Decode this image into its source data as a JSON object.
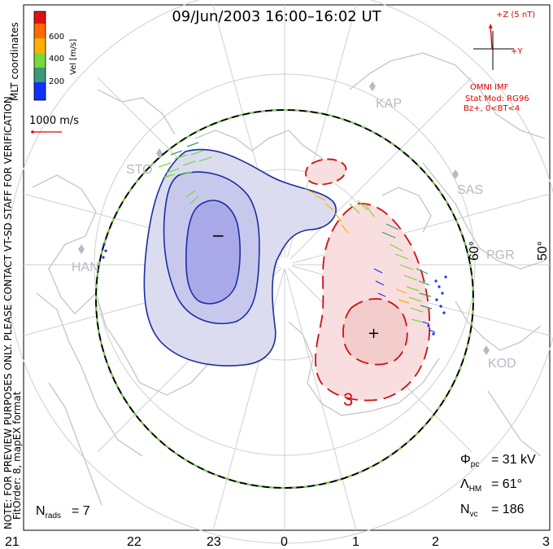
{
  "title": "09/Jun/2003 16:00–16:02 UT",
  "colorbar": {
    "ticks": [
      "600",
      "400",
      "200"
    ],
    "label": "Vel [m/s]",
    "colors": [
      "#e01010",
      "#ff6a00",
      "#ffb000",
      "#78d840",
      "#3a9a78",
      "#1030ff"
    ]
  },
  "side_label": "MLT coordinates",
  "scale_vector": "1000 m/s",
  "note_line1": "NOTE: FOR PREVIEW PURPOSES ONLY. PLEASE CONTACT VT-SD STAFF FOR VERIFICATION.",
  "note_line2": "FitOrder: 8, mapEX format",
  "imf": {
    "z_label": "+Z (5 nT)",
    "y_label": "+Y",
    "source": "OMNI IMF",
    "model": "Stat Mod: RG96",
    "condition": "Bz+, 0<BT<4"
  },
  "stations": [
    "STO",
    "KAP",
    "SAS",
    "PGR",
    "HAN",
    "KOD"
  ],
  "lat_labels": [
    "60°",
    "50°"
  ],
  "contour_labels": {
    "minus": "−",
    "plus": "+",
    "three": "3"
  },
  "stats": {
    "phi_pc": "= 31 kV",
    "lambda_hm": "= 61°",
    "n_vc": "= 186",
    "n_rads": "= 7"
  },
  "mlt_axis": [
    "21",
    "22",
    "23",
    "0",
    "1",
    "2",
    "3"
  ]
}
